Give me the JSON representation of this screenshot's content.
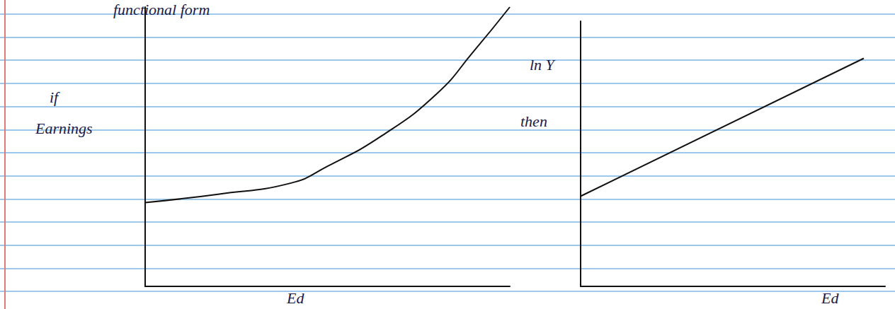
{
  "chart_data": [
    {
      "type": "line",
      "title": "functional form",
      "annotation": "if",
      "y_label": "Earnings",
      "x_label": "Ed",
      "x": [
        0,
        2,
        4,
        5,
        6.5,
        8,
        9,
        10
      ],
      "values": [
        3,
        3.3,
        3.7,
        4.3,
        5.4,
        6.9,
        8.4,
        10
      ],
      "xlim": [
        0,
        10
      ],
      "ylim": [
        0,
        10
      ],
      "tick_labels": false,
      "grid": false,
      "color": "#111111"
    },
    {
      "type": "line",
      "annotation": "then",
      "y_label": "ln Y",
      "x_label": "Ed",
      "x": [
        0,
        9.3
      ],
      "values": [
        3.4,
        8.6
      ],
      "xlim": [
        0,
        10
      ],
      "ylim": [
        0,
        10
      ],
      "tick_labels": false,
      "grid": false,
      "color": "#111111"
    }
  ]
}
